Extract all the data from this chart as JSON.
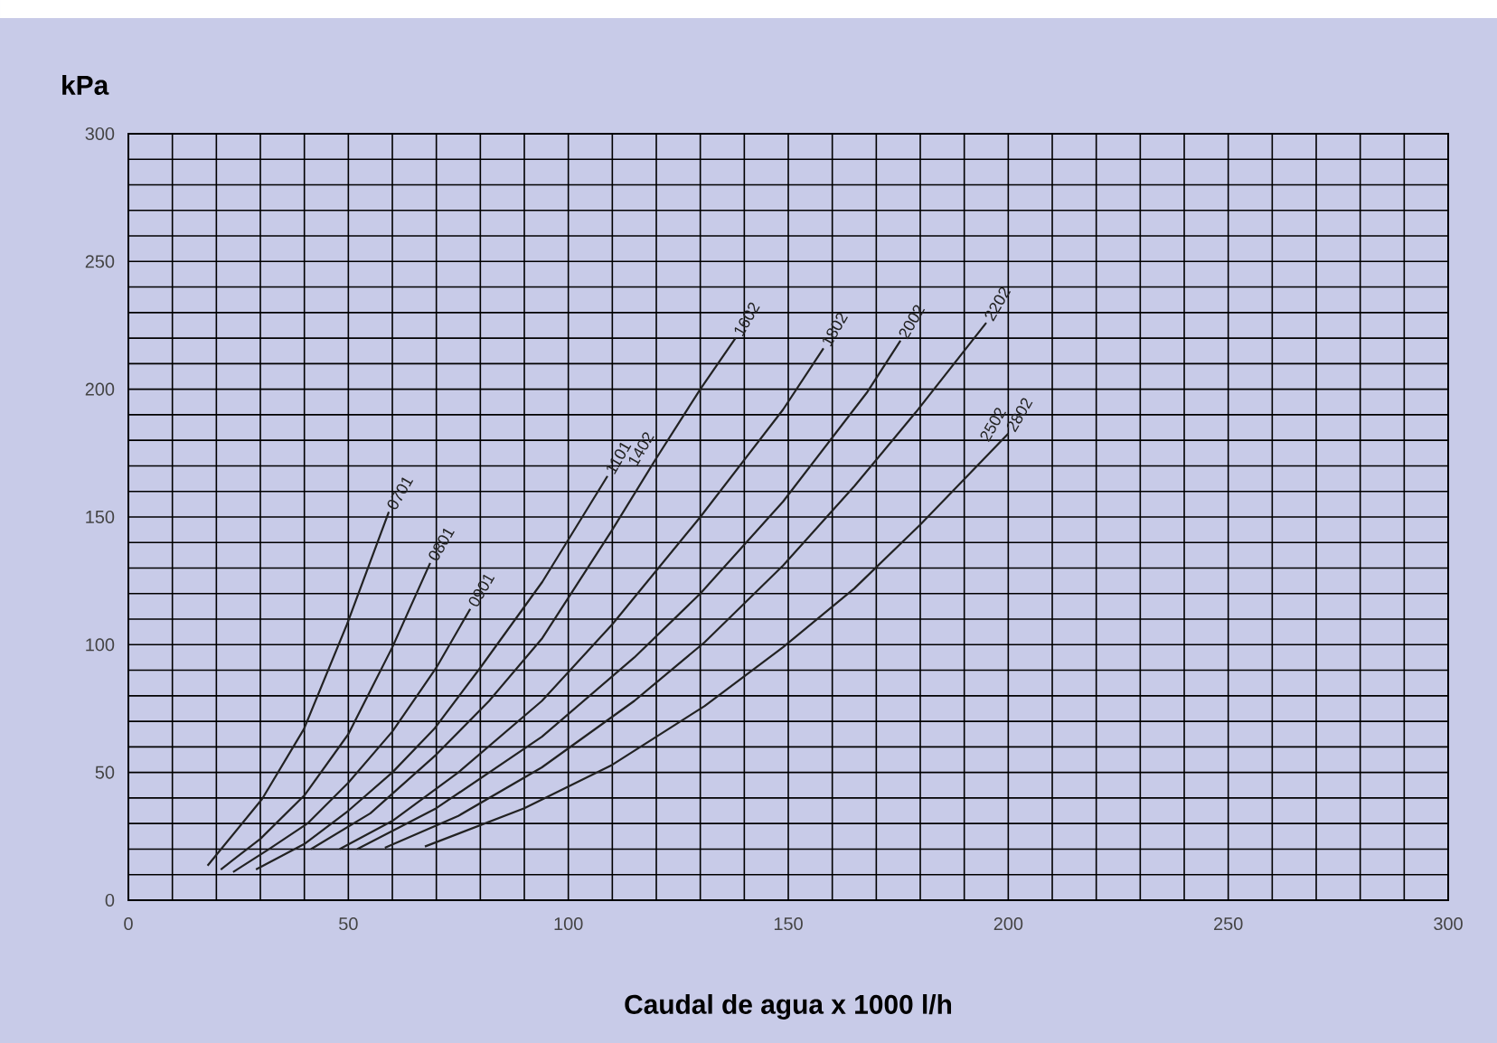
{
  "chart_data": {
    "type": "line",
    "xlabel": "Caudal de agua x 1000 l/h",
    "ylabel": "kPa",
    "xlim": [
      0,
      300
    ],
    "ylim": [
      0,
      300
    ],
    "xticks": [
      0,
      50,
      100,
      150,
      200,
      250,
      300
    ],
    "yticks": [
      0,
      50,
      100,
      150,
      200,
      250,
      300
    ],
    "grid": true,
    "series": [
      {
        "name": "0701",
        "color": "#222222",
        "x": [
          18,
          30.4,
          39.9,
          49.7,
          59.2
        ],
        "values": [
          13.5,
          39.6,
          67,
          108,
          152
        ]
      },
      {
        "name": "0801",
        "color": "#222222",
        "x": [
          21,
          30,
          40,
          50,
          60,
          68.6
        ],
        "values": [
          12,
          24,
          41,
          65,
          99,
          132
        ]
      },
      {
        "name": "0901",
        "color": "#222222",
        "x": [
          23.8,
          32,
          40.7,
          50,
          60,
          70,
          77.7
        ],
        "values": [
          11,
          20,
          30,
          46,
          66,
          91,
          114
        ]
      },
      {
        "name": "1101",
        "color": "#222222",
        "x": [
          29,
          40,
          50,
          60,
          69.5,
          80,
          94.1,
          108.9
        ],
        "values": [
          12,
          22,
          35,
          50,
          67,
          91,
          124.6,
          166
        ]
      },
      {
        "name": "1602",
        "color": "#222222",
        "x": [
          41.5,
          55,
          70,
          82,
          94.1,
          110,
          120,
          130,
          138
        ],
        "values": [
          20,
          34,
          57,
          78,
          102.6,
          145,
          173,
          200,
          220
        ]
      },
      {
        "name": "1802",
        "color": "#222222",
        "x": [
          48,
          60,
          75,
          94,
          110,
          130,
          148.8,
          158
        ],
        "values": [
          20,
          31,
          50,
          78,
          108,
          150,
          192,
          216
        ]
      },
      {
        "name": "2002",
        "color": "#222222",
        "x": [
          52,
          70,
          94,
          115,
          130,
          148.8,
          168,
          175.5
        ],
        "values": [
          20,
          36,
          64,
          95,
          120,
          156,
          199,
          219
        ]
      },
      {
        "name": "2202",
        "color": "#222222",
        "x": [
          58.3,
          75,
          94,
          115,
          131,
          148.8,
          165,
          179,
          195
        ],
        "values": [
          20.5,
          33,
          52,
          78,
          101,
          131,
          162,
          191,
          226
        ]
      },
      {
        "name": "2802",
        "color": "#222222",
        "x": [
          67.4,
          90,
          110,
          131,
          148.8,
          165,
          180,
          200
        ],
        "values": [
          21,
          36,
          53,
          76,
          99,
          122,
          147,
          182.6
        ]
      }
    ],
    "annotations": [
      {
        "text": "1402",
        "x": 120,
        "y": 173
      },
      {
        "text": "2502",
        "x": 200,
        "y": 182.6
      }
    ]
  }
}
